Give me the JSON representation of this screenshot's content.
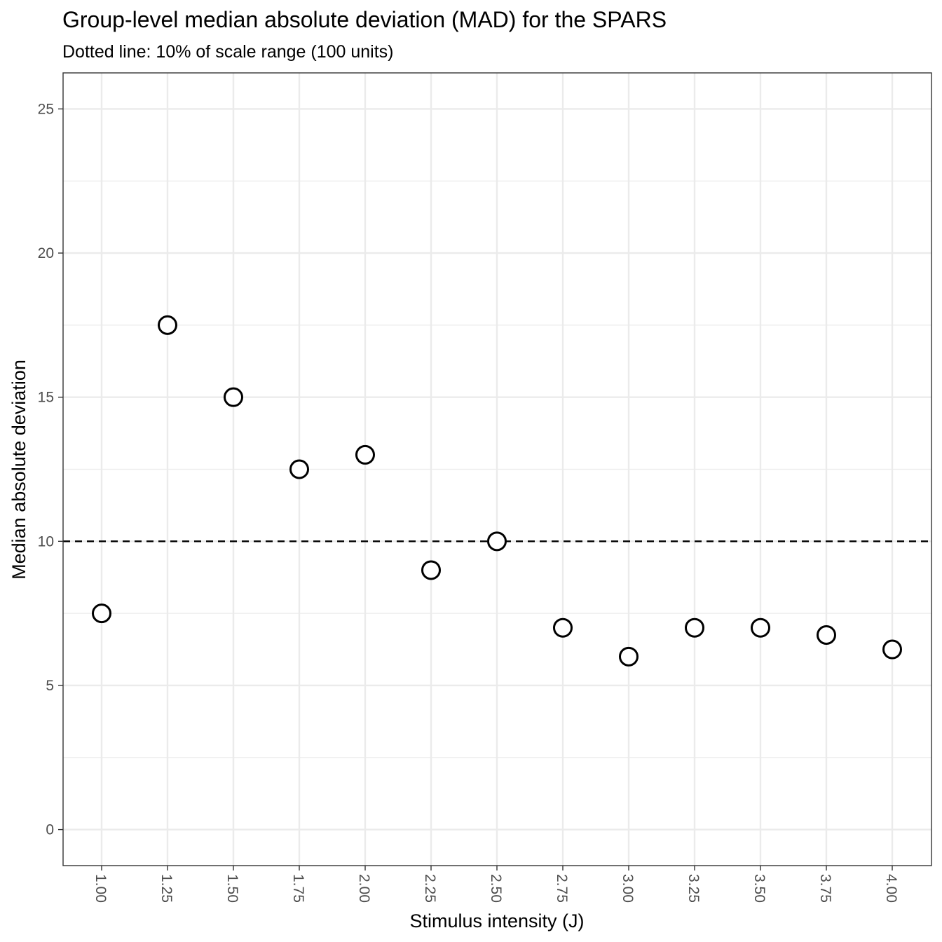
{
  "chart_data": {
    "type": "scatter",
    "title": "Group-level median absolute deviation (MAD) for the SPARS",
    "subtitle": "Dotted line: 10% of scale range (100 units)",
    "xlabel": "Stimulus intensity (J)",
    "ylabel": "Median absolute deviation",
    "categories": [
      "1.00",
      "1.25",
      "1.50",
      "1.75",
      "2.00",
      "2.25",
      "2.50",
      "2.75",
      "3.00",
      "3.25",
      "3.50",
      "3.75",
      "4.00"
    ],
    "x": [
      1.0,
      1.25,
      1.5,
      1.75,
      2.0,
      2.25,
      2.5,
      2.75,
      3.0,
      3.25,
      3.5,
      3.75,
      4.0
    ],
    "values": [
      7.5,
      17.5,
      15.0,
      12.5,
      13.0,
      9.0,
      10.0,
      7.0,
      6.0,
      7.0,
      7.0,
      6.75,
      6.25
    ],
    "yticks": [
      0,
      5,
      10,
      15,
      20,
      25
    ],
    "ytick_labels": [
      "0",
      "5",
      "10",
      "15",
      "20",
      "25"
    ],
    "ylim": [
      -1.25,
      26.25
    ],
    "reference_line": {
      "y": 10,
      "style": "dashed"
    },
    "grid": true,
    "legend": "none",
    "colors": {
      "point_stroke": "#000000",
      "point_fill": "#ffffff",
      "grid": "#ebebeb",
      "panel_border": "#333333",
      "tick_label": "#4d4d4d"
    }
  }
}
